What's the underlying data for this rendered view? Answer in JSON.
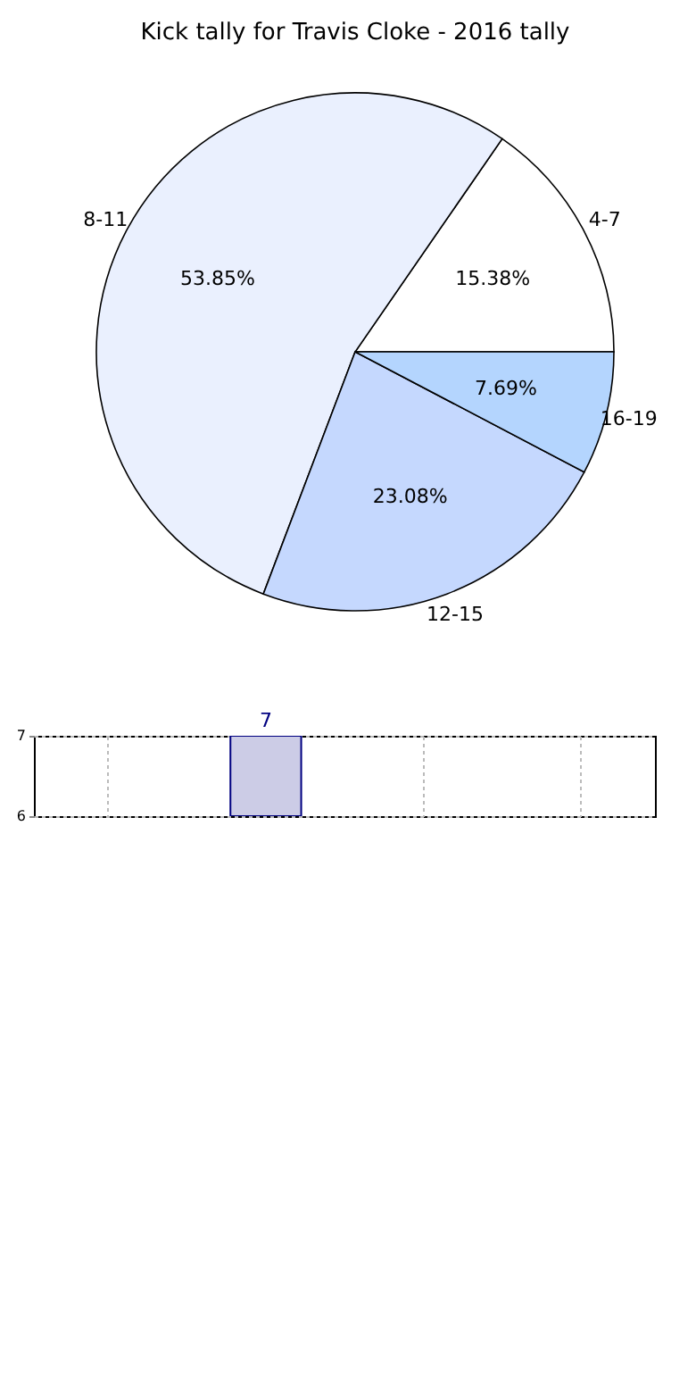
{
  "chart_data": [
    {
      "type": "pie",
      "title": "Kick tally for Travis Cloke - 2016 tally",
      "categories": [
        "4-7",
        "8-11",
        "12-15",
        "16-19"
      ],
      "values": [
        15.38,
        53.85,
        23.08,
        7.69
      ],
      "colors": [
        "#ffffff",
        "#eaf0fe",
        "#c5d8fe",
        "#b4d5fe"
      ],
      "value_labels": [
        "15.38%",
        "53.85%",
        "23.08%",
        "7.69%"
      ]
    },
    {
      "type": "bar",
      "categories": [
        null,
        null,
        null,
        null
      ],
      "values": [
        null,
        7,
        null,
        null
      ],
      "color": "#cccce6",
      "ylim": [
        6,
        7
      ],
      "yticks": [
        6,
        7
      ],
      "grid": true,
      "tick_labels": "y",
      "data_labels": true
    }
  ]
}
